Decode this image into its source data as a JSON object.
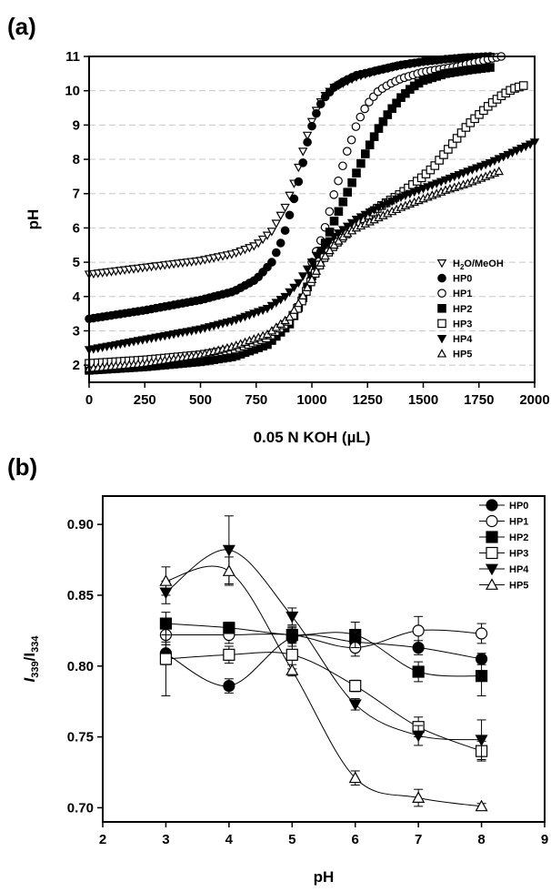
{
  "chart_data": [
    {
      "panel_label": "(a)",
      "type": "scatter",
      "xlabel": "0.05 N KOH (µL)",
      "ylabel": "pH",
      "xlim": [
        0,
        2000
      ],
      "ylim": [
        1.5,
        11
      ],
      "x_ticks": [
        "0",
        "250",
        "500",
        "750",
        "1000",
        "1250",
        "1500",
        "1750",
        "2000"
      ],
      "y_ticks": [
        "2",
        "3",
        "4",
        "5",
        "6",
        "7",
        "8",
        "9",
        "10",
        "11"
      ],
      "grid": "horizontal dashed",
      "legend_position": "bottom-right",
      "series": [
        {
          "name": "H2O/MeOH",
          "legend_main": "H",
          "legend_sub1": "2",
          "legend_mid": "O/MeOH",
          "marker": "triangle-down-open",
          "x": [
            0,
            250,
            500,
            650,
            750,
            820,
            880,
            920,
            950,
            980,
            1010,
            1050,
            1100,
            1200,
            1300,
            1400,
            1500,
            1600,
            1700,
            1800
          ],
          "y": [
            4.65,
            4.85,
            5.05,
            5.25,
            5.5,
            5.9,
            6.6,
            7.3,
            8.0,
            8.7,
            9.3,
            9.8,
            10.1,
            10.4,
            10.6,
            10.75,
            10.85,
            10.92,
            10.98,
            11.0
          ]
        },
        {
          "name": "HP0",
          "marker": "circle-filled",
          "x": [
            0,
            250,
            500,
            650,
            750,
            820,
            870,
            910,
            950,
            980,
            1010,
            1050,
            1100,
            1150,
            1200,
            1300,
            1400,
            1500,
            1600,
            1700,
            1800
          ],
          "y": [
            3.35,
            3.6,
            3.9,
            4.15,
            4.5,
            5.0,
            5.7,
            6.6,
            7.6,
            8.5,
            9.2,
            9.75,
            10.1,
            10.3,
            10.45,
            10.6,
            10.75,
            10.85,
            10.92,
            10.97,
            11.0
          ]
        },
        {
          "name": "HP1",
          "marker": "circle-open",
          "x": [
            1000,
            1050,
            1080,
            1100,
            1130,
            1150,
            1180,
            1200,
            1230,
            1260,
            1300,
            1350,
            1400,
            1450,
            1500,
            1550,
            1600,
            1650,
            1700,
            1750,
            1800,
            1850
          ],
          "y": [
            5.0,
            5.8,
            6.5,
            7.0,
            7.6,
            8.1,
            8.6,
            9.0,
            9.4,
            9.7,
            10.0,
            10.2,
            10.35,
            10.45,
            10.55,
            10.6,
            10.65,
            10.7,
            10.78,
            10.85,
            10.93,
            11.0
          ]
        },
        {
          "name": "HP2",
          "marker": "square-filled",
          "x": [
            0,
            250,
            500,
            650,
            800,
            900,
            950,
            1000,
            1050,
            1100,
            1150,
            1200,
            1250,
            1300,
            1350,
            1400,
            1450,
            1500,
            1600,
            1700,
            1800
          ],
          "y": [
            1.85,
            1.95,
            2.1,
            2.25,
            2.6,
            3.2,
            3.8,
            4.6,
            5.4,
            6.2,
            6.9,
            7.6,
            8.3,
            8.9,
            9.4,
            9.8,
            10.1,
            10.3,
            10.5,
            10.6,
            10.68
          ]
        },
        {
          "name": "HP3",
          "marker": "square-open",
          "x": [
            0,
            250,
            500,
            650,
            800,
            900,
            950,
            1000,
            1050,
            1100,
            1150,
            1200,
            1300,
            1400,
            1500,
            1550,
            1600,
            1650,
            1700,
            1750,
            1800,
            1850,
            1900,
            1950
          ],
          "y": [
            2.05,
            2.15,
            2.3,
            2.45,
            2.8,
            3.3,
            3.8,
            4.5,
            5.1,
            5.5,
            5.8,
            6.1,
            6.6,
            7.0,
            7.5,
            7.8,
            8.2,
            8.6,
            9.0,
            9.3,
            9.6,
            9.85,
            10.05,
            10.15
          ]
        },
        {
          "name": "HP4",
          "marker": "triangle-down-filled",
          "x": [
            0,
            250,
            500,
            650,
            800,
            880,
            940,
            980,
            1020,
            1060,
            1100,
            1150,
            1200,
            1300,
            1400,
            1500,
            1600,
            1700,
            1800,
            1900,
            2000
          ],
          "y": [
            2.45,
            2.75,
            3.05,
            3.3,
            3.65,
            4.0,
            4.4,
            4.8,
            5.2,
            5.5,
            5.75,
            6.0,
            6.25,
            6.6,
            6.9,
            7.15,
            7.4,
            7.65,
            7.9,
            8.2,
            8.5
          ]
        },
        {
          "name": "HP5",
          "marker": "triangle-up-open",
          "x": [
            0,
            250,
            500,
            650,
            800,
            900,
            950,
            1000,
            1050,
            1100,
            1150,
            1200,
            1300,
            1400,
            1500,
            1600,
            1700,
            1800,
            1840
          ],
          "y": [
            1.9,
            2.05,
            2.3,
            2.55,
            2.9,
            3.4,
            3.9,
            4.5,
            5.1,
            5.5,
            5.8,
            6.0,
            6.3,
            6.6,
            6.85,
            7.1,
            7.3,
            7.55,
            7.65
          ]
        }
      ]
    },
    {
      "panel_label": "(b)",
      "type": "line",
      "xlabel": "pH",
      "ylabel": "I339/I334",
      "ylabel_main1": "I",
      "ylabel_sub1": "339",
      "ylabel_mid": "/I",
      "ylabel_sub2": "334",
      "xlim": [
        2,
        9
      ],
      "ylim": [
        0.69,
        0.92
      ],
      "x_ticks": [
        "2",
        "3",
        "4",
        "5",
        "6",
        "7",
        "8",
        "9"
      ],
      "y_ticks": [
        "0.70",
        "0.75",
        "0.80",
        "0.85",
        "0.90"
      ],
      "legend_position": "top-right",
      "x": [
        3,
        4,
        5,
        6,
        7,
        8
      ],
      "series": [
        {
          "name": "HP0",
          "marker": "circle-filled",
          "values": [
            0.809,
            0.786,
            0.82,
            0.817,
            0.813,
            0.805
          ],
          "errors": [
            0.008,
            0.005,
            0.006,
            0.005,
            0.005,
            0.004
          ]
        },
        {
          "name": "HP1",
          "marker": "circle-open",
          "values": [
            0.822,
            0.822,
            0.822,
            0.813,
            0.825,
            0.823
          ],
          "errors": [
            0.007,
            0.006,
            0.006,
            0.006,
            0.01,
            0.007
          ]
        },
        {
          "name": "HP2",
          "marker": "square-filled",
          "values": [
            0.83,
            0.827,
            0.822,
            0.822,
            0.796,
            0.793
          ],
          "errors": [
            0.008,
            0.004,
            0.005,
            0.009,
            0.007,
            0.014
          ]
        },
        {
          "name": "HP3",
          "marker": "square-open",
          "values": [
            0.805,
            0.808,
            0.808,
            0.786,
            0.757,
            0.74
          ],
          "errors": [
            0.026,
            0.006,
            0.01,
            0.004,
            0.007,
            0.007
          ]
        },
        {
          "name": "HP4",
          "marker": "triangle-down-filled",
          "values": [
            0.852,
            0.882,
            0.835,
            0.773,
            0.751,
            0.748
          ],
          "errors": [
            0.008,
            0.024,
            0.006,
            0.004,
            0.007,
            0.014
          ]
        },
        {
          "name": "HP5",
          "marker": "triangle-up-open",
          "values": [
            0.86,
            0.867,
            0.797,
            0.721,
            0.707,
            0.701
          ],
          "errors": [
            0.01,
            0.01,
            0.004,
            0.005,
            0.006,
            0.002
          ]
        }
      ]
    }
  ]
}
